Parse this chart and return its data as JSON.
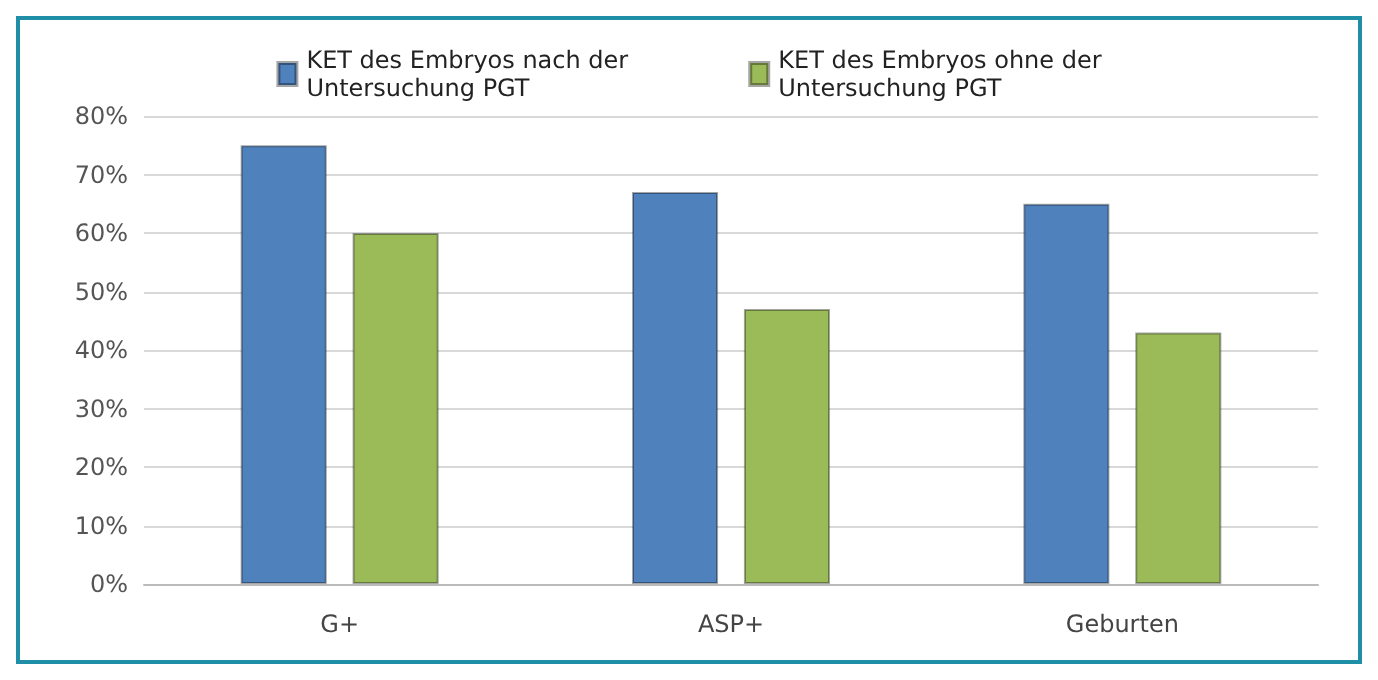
{
  "chart_data": {
    "type": "bar",
    "categories": [
      "G+",
      "ASP+",
      "Geburten"
    ],
    "series": [
      {
        "name": "KET des Embryos nach der\nUntersuchung PGT",
        "color": "#4f81bd",
        "values": [
          75,
          67,
          65
        ]
      },
      {
        "name": "KET des Embryos ohne der\nUntersuchung PGT",
        "color": "#9bbb59",
        "values": [
          60,
          47,
          43
        ]
      }
    ],
    "ylim": [
      0,
      80
    ],
    "yticks": [
      {
        "value": 0,
        "label": "0%"
      },
      {
        "value": 10,
        "label": "10%"
      },
      {
        "value": 20,
        "label": "20%"
      },
      {
        "value": 30,
        "label": "30%"
      },
      {
        "value": 40,
        "label": "40%"
      },
      {
        "value": 50,
        "label": "50%"
      },
      {
        "value": 60,
        "label": "60%"
      },
      {
        "value": 70,
        "label": "70%"
      },
      {
        "value": 80,
        "label": "80%"
      }
    ],
    "grid": "y",
    "legend": "top"
  }
}
